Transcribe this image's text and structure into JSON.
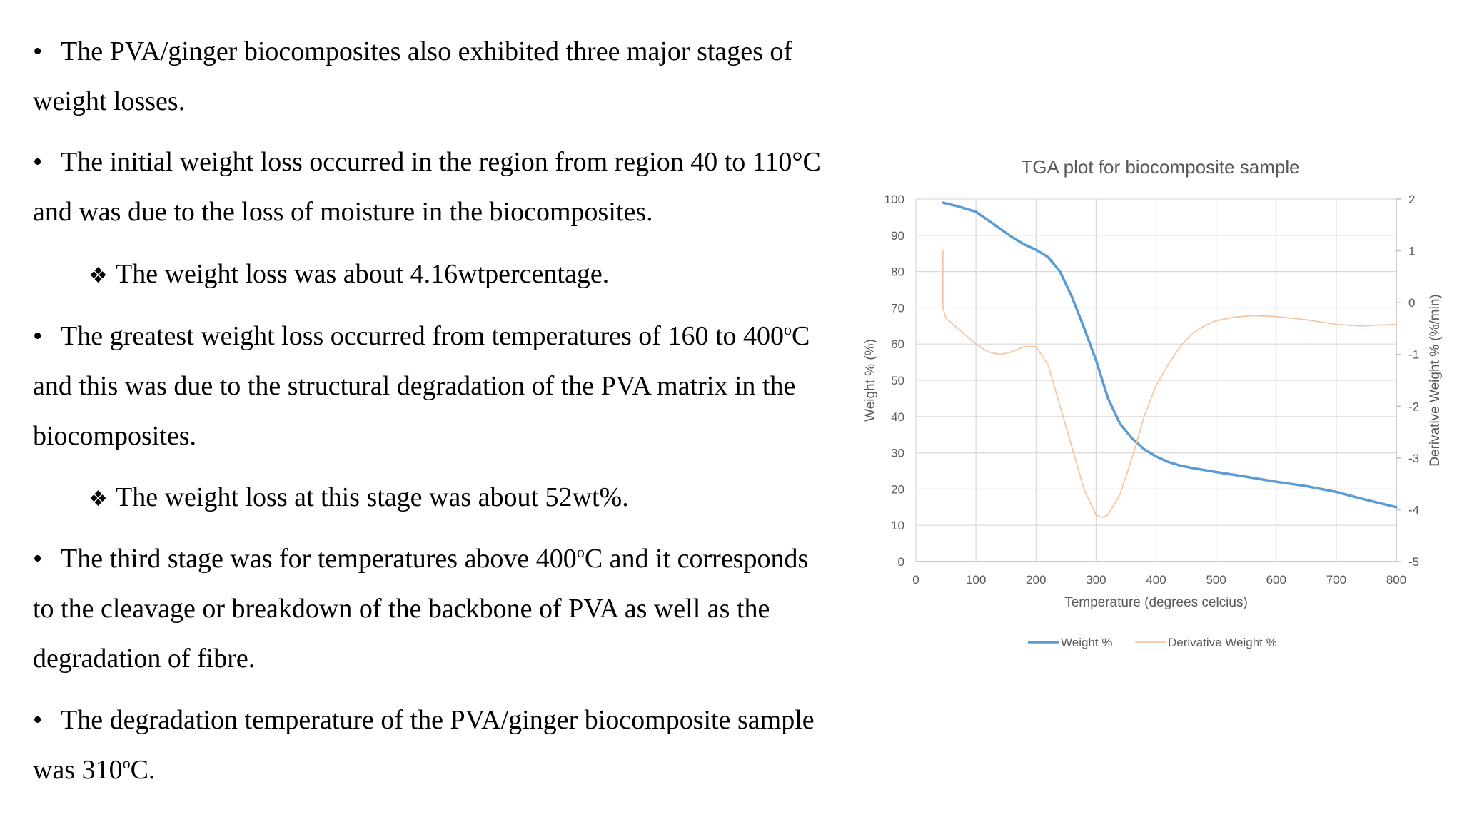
{
  "slide": {
    "lines": [
      {
        "kind": "bullet",
        "text": "The PVA/ginger biocomposites also exhibited three major stages of"
      },
      {
        "kind": "cont",
        "text": "weight losses."
      },
      {
        "kind": "bullet",
        "text": "The initial weight loss occurred in the region from region 40 to 110°C"
      },
      {
        "kind": "cont",
        "text": "and was due to the loss of moisture in the biocomposites."
      },
      {
        "kind": "sub",
        "text": "The weight loss was about 4.16wtpercentage."
      },
      {
        "kind": "bullet",
        "pre": "The greatest weight loss occurred from temperatures of 160 to 400",
        "sup": "o",
        "post": "C"
      },
      {
        "kind": "cont",
        "text": "and this was due to the structural degradation of the PVA matrix in the"
      },
      {
        "kind": "cont",
        "text": "biocomposites."
      },
      {
        "kind": "sub",
        "text": "The weight loss at this stage was about 52wt%."
      },
      {
        "kind": "bullet",
        "pre": "The third stage was for temperatures above 400",
        "sup": "o",
        "post": "C and it corresponds"
      },
      {
        "kind": "cont",
        "text": "to the cleavage or breakdown of the backbone of PVA as well as the"
      },
      {
        "kind": "cont",
        "text": "degradation of fibre."
      },
      {
        "kind": "bullet",
        "text": "The degradation temperature of the PVA/ginger biocomposite sample"
      },
      {
        "kind": "cont",
        "pre": "was 310",
        "sup": "o",
        "post": "C."
      }
    ],
    "bullet_glyph": "•",
    "sub_glyph": "❖"
  },
  "chart_data": {
    "type": "line",
    "title": "TGA plot for biocomposite sample",
    "xlabel": "Temperature (degrees celcius)",
    "ylabel": "Weight % (%)",
    "y2label": "Derivative Weight % (%/min)",
    "xlim": [
      0,
      800
    ],
    "ylim": [
      0,
      100
    ],
    "y2lim": [
      -5,
      2
    ],
    "xticks": [
      0,
      100,
      200,
      300,
      400,
      500,
      600,
      700,
      800
    ],
    "yticks": [
      0,
      10,
      20,
      30,
      40,
      50,
      60,
      70,
      80,
      90,
      100
    ],
    "y2ticks": [
      -5,
      -4,
      -3,
      -2,
      -1,
      0,
      1,
      2
    ],
    "grid": true,
    "legend_position": "bottom",
    "series": [
      {
        "name": "Weight %",
        "axis": "left",
        "color": "#5b9bd5",
        "x": [
          45,
          70,
          100,
          130,
          160,
          180,
          200,
          220,
          240,
          260,
          280,
          300,
          320,
          340,
          360,
          380,
          400,
          420,
          440,
          460,
          500,
          550,
          600,
          650,
          700,
          750,
          800
        ],
        "y": [
          99,
          98,
          96.5,
          93,
          89.5,
          87.5,
          86,
          84,
          80,
          73,
          64.5,
          55.5,
          45,
          38,
          34,
          31,
          29,
          27.5,
          26.5,
          25.8,
          24.7,
          23.4,
          22,
          20.8,
          19.2,
          17,
          15
        ]
      },
      {
        "name": "Derivative Weight %",
        "axis": "right",
        "color": "#f4c7a5",
        "x": [
          45,
          45,
          50,
          70,
          100,
          120,
          140,
          160,
          180,
          200,
          220,
          240,
          260,
          280,
          300,
          310,
          320,
          340,
          360,
          380,
          400,
          420,
          440,
          460,
          480,
          500,
          530,
          560,
          600,
          650,
          700,
          740,
          800
        ],
        "y": [
          1.0,
          -0.1,
          -0.3,
          -0.5,
          -0.8,
          -0.95,
          -1.0,
          -0.95,
          -0.85,
          -0.85,
          -1.2,
          -2.0,
          -2.8,
          -3.6,
          -4.1,
          -4.15,
          -4.1,
          -3.7,
          -3.0,
          -2.2,
          -1.6,
          -1.2,
          -0.85,
          -0.6,
          -0.45,
          -0.35,
          -0.28,
          -0.25,
          -0.27,
          -0.33,
          -0.42,
          -0.45,
          -0.42
        ]
      }
    ]
  }
}
